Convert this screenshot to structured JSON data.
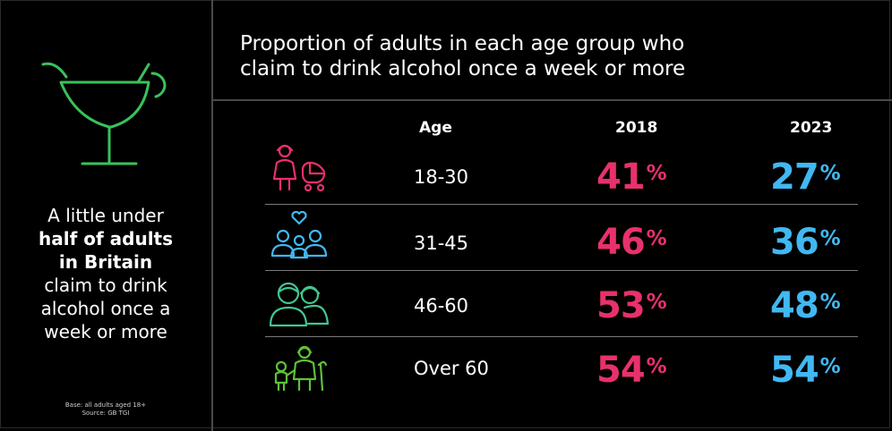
{
  "left_panel": {
    "line1": "A little under",
    "line2": "half of adults",
    "line3": "in Britain",
    "line4": "claim to drink",
    "line5": "alcohol once a",
    "line6": "week or more",
    "base_note_1": "Base: all adults aged 18+",
    "base_note_2": "Source: GB TGI"
  },
  "colors": {
    "year_2018": "#e8316b",
    "year_2023": "#41b8f2",
    "cocktail_icon": "#39c25b",
    "row1_icon": "#e8316b",
    "row2_icon": "#41b8f2",
    "row3_icon": "#41c78f",
    "row4_icon": "#5fc13a"
  },
  "chart_data": {
    "type": "table",
    "title": "Proportion of adults in each age group who claim to drink alcohol once a week or more",
    "title_line1": "Proportion of adults in each age group who",
    "title_line2": "claim to drink alcohol once a week or more",
    "columns": [
      "Age",
      "2018",
      "2023"
    ],
    "categories": [
      "18-30",
      "31-45",
      "46-60",
      "Over 60"
    ],
    "unit": "%",
    "series": [
      {
        "name": "2018",
        "values": [
          41,
          46,
          53,
          54
        ]
      },
      {
        "name": "2023",
        "values": [
          27,
          36,
          48,
          54
        ]
      }
    ],
    "row_icons": [
      "mother-with-pram-icon",
      "family-with-heart-icon",
      "two-adults-icon",
      "grandparent-with-child-icon"
    ]
  }
}
